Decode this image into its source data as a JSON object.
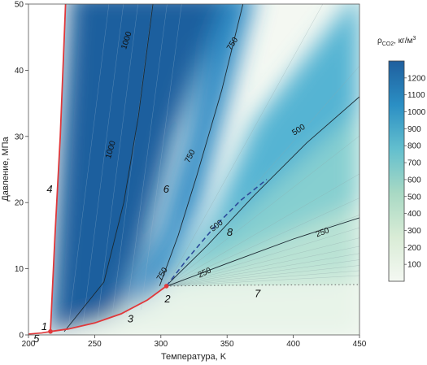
{
  "chart_data": {
    "type": "heatmap",
    "xlabel": "Температура, K",
    "ylabel": "Давление, МПа",
    "xlim": [
      200,
      450
    ],
    "ylim": [
      0,
      50
    ],
    "x_ticks": [
      "200",
      "250",
      "300",
      "350",
      "400",
      "450"
    ],
    "y_ticks": [
      "0",
      "10",
      "20",
      "30",
      "40",
      "50"
    ],
    "colorbar": {
      "title_prefix": "ρ",
      "title_sub": "CO2",
      "title_suffix": ", кг/м",
      "title_sup": "3",
      "min": 0,
      "max": 1300,
      "ticks": [
        "100",
        "200",
        "300",
        "400",
        "500",
        "600",
        "700",
        "800",
        "900",
        "1000",
        "1100",
        "1200"
      ],
      "colors": [
        "#f4f8f2",
        "#d9ecd6",
        "#a8d9c4",
        "#63bfce",
        "#2b8fc4",
        "#1f5f9e"
      ]
    },
    "contours": [
      {
        "label": "1000",
        "points": [
          [
            227,
            0.5
          ],
          [
            257,
            8
          ],
          [
            272,
            20
          ],
          [
            283,
            33
          ],
          [
            294,
            50
          ]
        ]
      },
      {
        "label": "750",
        "points": [
          [
            299,
            7.4
          ],
          [
            313,
            15
          ],
          [
            327,
            24
          ],
          [
            346,
            37
          ],
          [
            362,
            50
          ]
        ]
      },
      {
        "label": "500",
        "points": [
          [
            305,
            7.6
          ],
          [
            335,
            13.5
          ],
          [
            370,
            21
          ],
          [
            410,
            29
          ],
          [
            450,
            36
          ]
        ]
      },
      {
        "label": "250",
        "points": [
          [
            305,
            7.4
          ],
          [
            350,
            10.8
          ],
          [
            400,
            14.5
          ],
          [
            450,
            17.7
          ]
        ]
      }
    ],
    "contour_labels": [
      {
        "text": "1000",
        "x": 274,
        "y": 44.5,
        "angle": -72
      },
      {
        "text": "1000",
        "x": 262,
        "y": 28,
        "angle": -74
      },
      {
        "text": "750",
        "x": 354,
        "y": 44,
        "angle": -58
      },
      {
        "text": "750",
        "x": 322,
        "y": 27,
        "angle": -63
      },
      {
        "text": "750",
        "x": 301,
        "y": 9.2,
        "angle": -60
      },
      {
        "text": "500",
        "x": 404,
        "y": 31,
        "angle": -33
      },
      {
        "text": "500",
        "x": 342,
        "y": 16.5,
        "angle": -38
      },
      {
        "text": "250",
        "x": 422,
        "y": 15.5,
        "angle": -20
      },
      {
        "text": "250",
        "x": 333,
        "y": 9.4,
        "angle": -25
      }
    ],
    "melting_curve": [
      [
        216.6,
        0.52
      ],
      [
        220,
        15
      ],
      [
        224,
        30
      ],
      [
        227,
        45
      ],
      [
        228,
        50
      ]
    ],
    "sublimation_curve": [
      [
        200,
        0.13
      ],
      [
        210,
        0.3
      ],
      [
        216.6,
        0.52
      ]
    ],
    "saturation_curve": [
      [
        216.6,
        0.52
      ],
      [
        230,
        0.9
      ],
      [
        250,
        1.8
      ],
      [
        270,
        3.2
      ],
      [
        290,
        5.3
      ],
      [
        304.2,
        7.38
      ]
    ],
    "widom_line": [
      [
        304.2,
        7.38
      ],
      [
        320,
        11.5
      ],
      [
        340,
        16.2
      ],
      [
        360,
        20.3
      ],
      [
        380,
        23.5
      ]
    ],
    "critical_isobar": [
      [
        304.2,
        7.38
      ],
      [
        350,
        7.5
      ],
      [
        400,
        7.55
      ],
      [
        450,
        7.6
      ]
    ],
    "triple_point": [
      216.6,
      0.52
    ],
    "critical_point": [
      304.2,
      7.38
    ],
    "region_labels": [
      {
        "text": "1",
        "x": 212,
        "y": 1.2
      },
      {
        "text": "2",
        "x": 305,
        "y": 5.4
      },
      {
        "text": "3",
        "x": 277,
        "y": 2.4
      },
      {
        "text": "4",
        "x": 216,
        "y": 22
      },
      {
        "text": "5",
        "x": 206,
        "y": -0.6
      },
      {
        "text": "6",
        "x": 304,
        "y": 22
      },
      {
        "text": "7",
        "x": 373,
        "y": 6.2
      },
      {
        "text": "8",
        "x": 352,
        "y": 15.5
      }
    ],
    "grid": false,
    "legend": "colorbar-right"
  }
}
